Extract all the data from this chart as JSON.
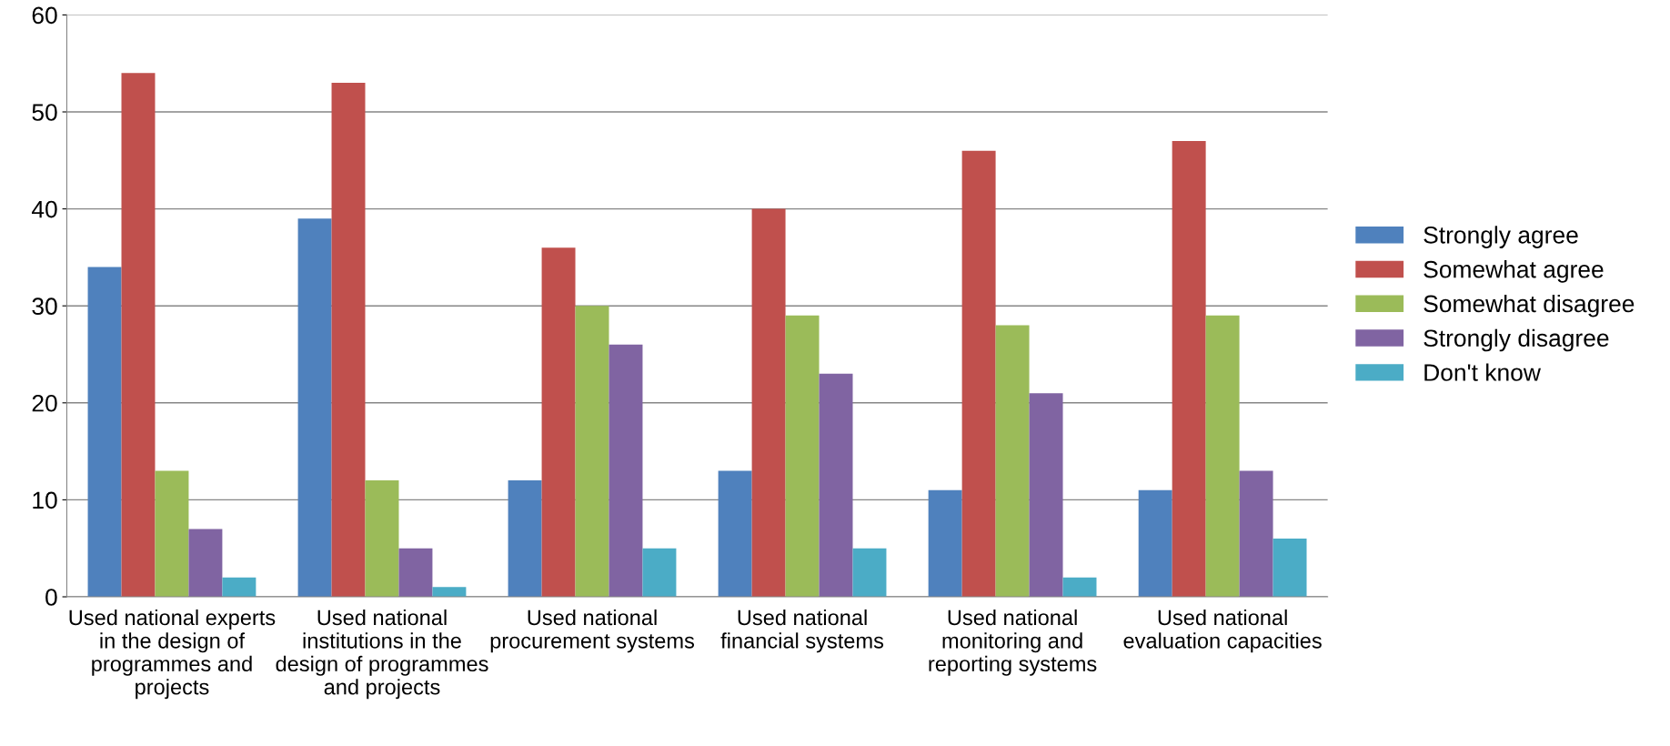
{
  "chart_data": {
    "type": "bar",
    "categories": [
      "Used national experts in the design of programmes and projects",
      "Used national institutions in the design of programmes and projects",
      "Used national procurement systems",
      "Used national financial systems",
      "Used national monitoring and reporting systems",
      "Used national evaluation capacities"
    ],
    "series": [
      {
        "name": "Strongly agree",
        "color": "#4f81bd",
        "values": [
          34,
          39,
          12,
          13,
          11,
          11
        ]
      },
      {
        "name": "Somewhat agree",
        "color": "#c0504d",
        "values": [
          54,
          53,
          36,
          40,
          46,
          47
        ]
      },
      {
        "name": "Somewhat disagree",
        "color": "#9bbb59",
        "values": [
          13,
          12,
          30,
          29,
          28,
          29
        ]
      },
      {
        "name": "Strongly disagree",
        "color": "#8064a2",
        "values": [
          7,
          5,
          26,
          23,
          21,
          13
        ]
      },
      {
        "name": "Don't know",
        "color": "#4bacc6",
        "values": [
          2,
          1,
          5,
          5,
          2,
          6
        ]
      }
    ],
    "ylim": [
      0,
      60
    ],
    "yticks": [
      0,
      10,
      20,
      30,
      40,
      50,
      60
    ],
    "grid": "y",
    "legend": "right"
  }
}
